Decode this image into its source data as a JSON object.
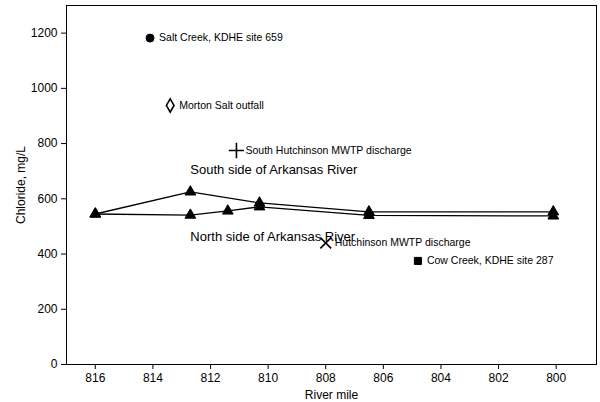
{
  "chart_data": {
    "type": "line",
    "x_label": "River mile",
    "y_label": "Chloride, mg/L",
    "xlim": [
      817,
      798.6
    ],
    "xticks": [
      816,
      814,
      812,
      810,
      808,
      806,
      804,
      802,
      800
    ],
    "ylim": [
      0,
      1300
    ],
    "yticks": [
      0,
      200,
      400,
      600,
      800,
      1000,
      1200
    ],
    "grid": false,
    "series": [
      {
        "name": "South side of Arkansas River",
        "type": "line",
        "marker": "triangle",
        "color": "#000000",
        "x": [
          816,
          812.7,
          810.3,
          806.5,
          800.1
        ],
        "values": [
          545,
          625,
          585,
          553,
          553
        ]
      },
      {
        "name": "North side of Arkansas River",
        "type": "line",
        "marker": "triangle",
        "color": "#000000",
        "x": [
          816,
          812.7,
          811.4,
          810.3,
          806.5,
          800.1
        ],
        "values": [
          545,
          541,
          556,
          571,
          540,
          538
        ]
      },
      {
        "name": "Salt Creek, KDHE site 659",
        "type": "scatter",
        "marker": "circle",
        "color": "#000000",
        "x": [
          814.1
        ],
        "values": [
          1182
        ]
      },
      {
        "name": "Morton Salt outfall",
        "type": "scatter",
        "marker": "diamond-open",
        "color": "#000000",
        "x": [
          813.4
        ],
        "values": [
          938
        ]
      },
      {
        "name": "South Hutchinson MWTP discharge",
        "type": "scatter",
        "marker": "plus",
        "color": "#000000",
        "x": [
          811.1
        ],
        "values": [
          775
        ]
      },
      {
        "name": "Hutchinson MWTP discharge",
        "type": "scatter",
        "marker": "x",
        "color": "#000000",
        "x": [
          808.0
        ],
        "values": [
          440
        ]
      },
      {
        "name": "Cow Creek, KDHE site 287",
        "type": "scatter",
        "marker": "square",
        "color": "#000000",
        "x": [
          804.8
        ],
        "values": [
          375
        ]
      }
    ]
  }
}
